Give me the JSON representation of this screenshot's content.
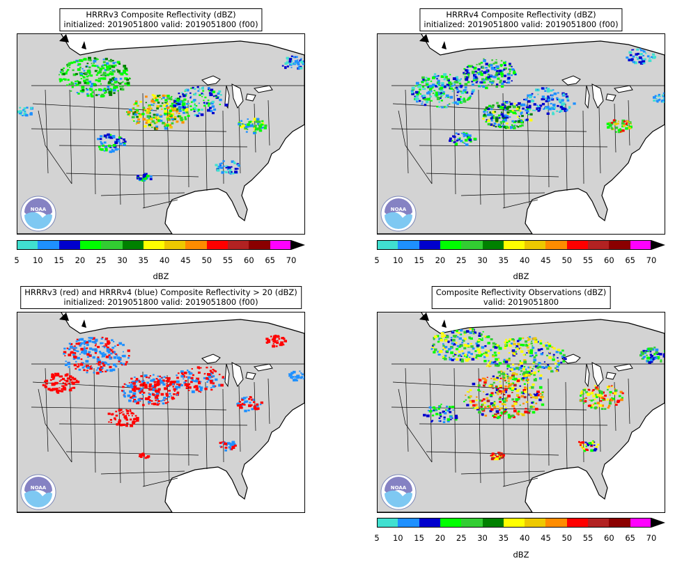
{
  "panels": [
    {
      "title_line1": "HRRRv3 Composite Reflectivity (dBZ)",
      "title_line2": "initialized: 2019051800 valid: 2019051800 (f00)"
    },
    {
      "title_line1": "HRRRv4 Composite Reflectivity (dBZ)",
      "title_line2": "initialized: 2019051800 valid: 2019051800 (f00)"
    },
    {
      "title_line1": "HRRRv3 (red) and HRRRv4 (blue) Composite Reflectivity > 20 (dBZ)",
      "title_line2": "initialized: 2019051800 valid: 2019051800 (f00)"
    },
    {
      "title_line1": "Composite Reflectivity Observations (dBZ)",
      "title_line2": "valid: 2019051800"
    }
  ],
  "logo": {
    "text": "NOAA"
  },
  "colorbar": {
    "label": "dBZ",
    "ticks": [
      "5",
      "10",
      "15",
      "20",
      "25",
      "30",
      "35",
      "40",
      "45",
      "50",
      "55",
      "60",
      "65",
      "70"
    ],
    "colors": [
      "#40e0d0",
      "#1e90ff",
      "#0000cd",
      "#00ff00",
      "#32cd32",
      "#008000",
      "#ffff00",
      "#eec900",
      "#ff8c00",
      "#ff0000",
      "#b22222",
      "#8b0000",
      "#ff00ff"
    ],
    "extend_color": "#000000"
  },
  "map_colors": {
    "land": "#d3d3d3",
    "water": "#ffffff",
    "hrrrv3": "#ff0000",
    "hrrrv4": "#1e90ff"
  }
}
